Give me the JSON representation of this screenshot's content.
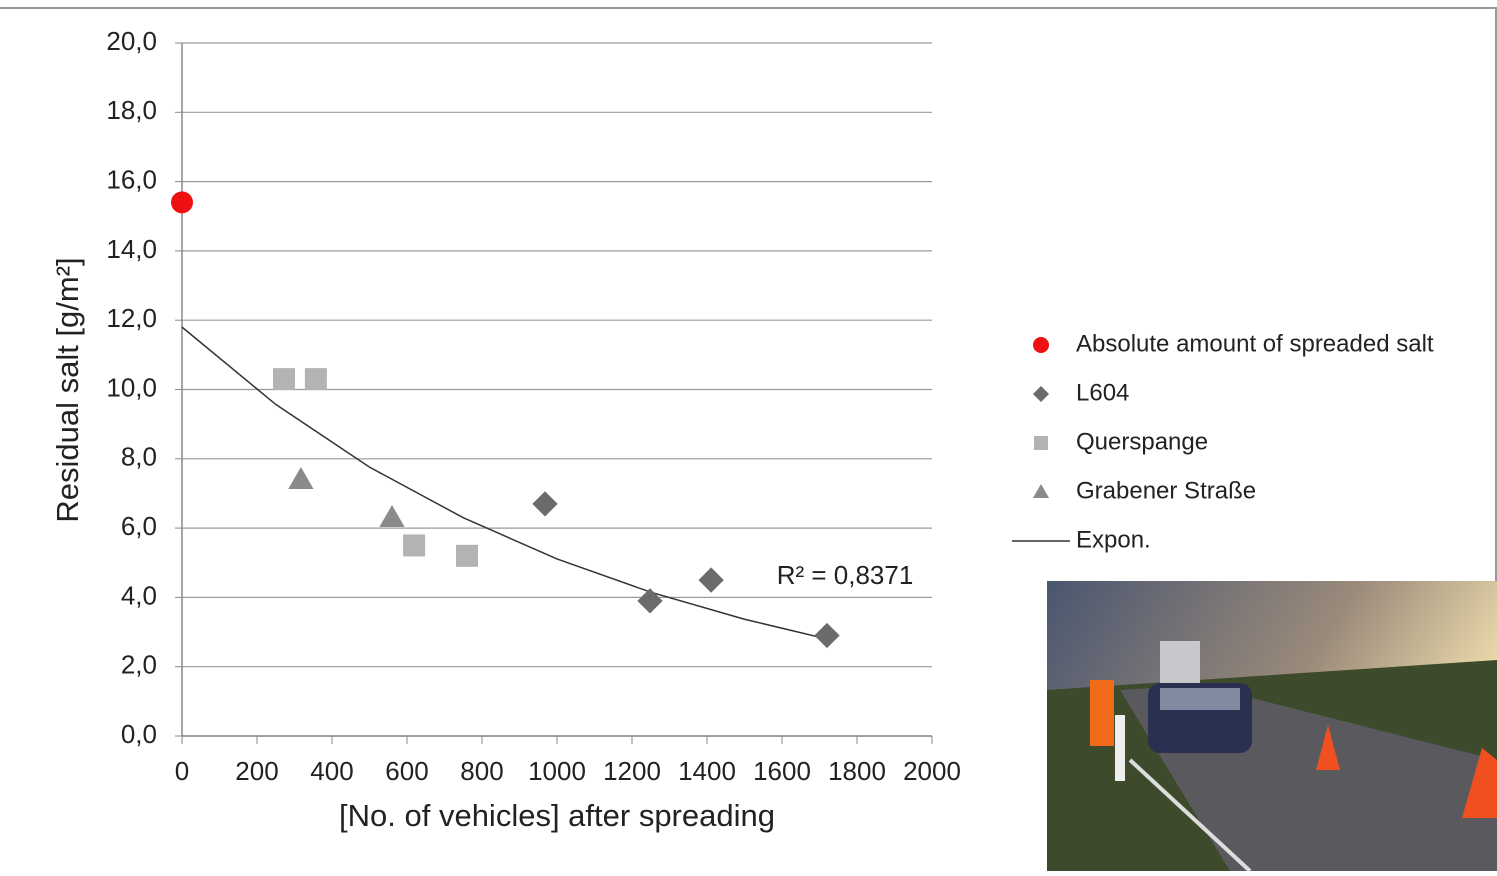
{
  "chart_data": {
    "type": "scatter",
    "x_label": "[No. of vehicles] after spreading",
    "y_label": "Residual salt [g/m²]",
    "xlim": [
      0,
      2000
    ],
    "xticks": [
      0,
      200,
      400,
      600,
      800,
      1000,
      1200,
      1400,
      1600,
      1800,
      2000
    ],
    "ylim": [
      0,
      20
    ],
    "yticks": [
      {
        "value": 0,
        "label": "0,0"
      },
      {
        "value": 2,
        "label": "2,0"
      },
      {
        "value": 4,
        "label": "4,0"
      },
      {
        "value": 6,
        "label": "6,0"
      },
      {
        "value": 8,
        "label": "8,0"
      },
      {
        "value": 10,
        "label": "10,0"
      },
      {
        "value": 12,
        "label": "12,0"
      },
      {
        "value": 14,
        "label": "14,0"
      },
      {
        "value": 16,
        "label": "16,0"
      },
      {
        "value": 18,
        "label": "18,0"
      },
      {
        "value": 20,
        "label": "20,0"
      }
    ],
    "grid": true,
    "series": [
      {
        "name": "Absolute amount of spreaded salt",
        "color": "#ee1111",
        "marker": "circle",
        "x": [
          0
        ],
        "values": [
          15.4
        ]
      },
      {
        "name": "L604",
        "color": "#6b6b6b",
        "marker": "diamond",
        "x": [
          968,
          1248,
          1411,
          1720
        ],
        "values": [
          6.7,
          3.9,
          4.5,
          2.9
        ]
      },
      {
        "name": "Querspange",
        "color": "#b3b3b3",
        "marker": "square",
        "x": [
          272,
          357,
          619,
          760
        ],
        "values": [
          10.3,
          10.3,
          5.5,
          5.2
        ]
      },
      {
        "name": "Grabener Straße",
        "color": "#8a8a8a",
        "marker": "triangle",
        "x": [
          317,
          560
        ],
        "values": [
          7.4,
          6.3
        ]
      }
    ],
    "trendline": {
      "name": "Expon.",
      "color": "#333333",
      "x": [
        0,
        250,
        500,
        750,
        1000,
        1250,
        1500,
        1720
      ],
      "values": [
        11.8,
        9.57,
        7.76,
        6.3,
        5.11,
        4.15,
        3.37,
        2.8
      ]
    },
    "annotation": "R² = 0,8371"
  }
}
